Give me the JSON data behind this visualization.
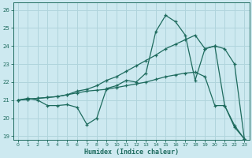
{
  "xlabel": "Humidex (Indice chaleur)",
  "xlim": [
    -0.5,
    23.5
  ],
  "ylim": [
    18.8,
    26.4
  ],
  "yticks": [
    19,
    20,
    21,
    22,
    23,
    24,
    25,
    26
  ],
  "xticks": [
    0,
    1,
    2,
    3,
    4,
    5,
    6,
    7,
    8,
    9,
    10,
    11,
    12,
    13,
    14,
    15,
    16,
    17,
    18,
    19,
    20,
    21,
    22,
    23
  ],
  "bg_color": "#cde9f0",
  "grid_color": "#b0d4dc",
  "line_color": "#1e6b5e",
  "line1_x": [
    0,
    1,
    2,
    3,
    4,
    5,
    6,
    7,
    8,
    9,
    10,
    11,
    12,
    13,
    14,
    15,
    16,
    17,
    18,
    19,
    20,
    21,
    22,
    23
  ],
  "line1_y": [
    21.0,
    21.1,
    21.0,
    20.7,
    20.7,
    20.75,
    20.6,
    19.65,
    20.0,
    21.65,
    21.8,
    22.1,
    22.0,
    22.5,
    24.8,
    25.7,
    25.35,
    24.6,
    22.1,
    23.85,
    24.0,
    20.7,
    19.5,
    18.85
  ],
  "line2_x": [
    0,
    1,
    2,
    3,
    4,
    5,
    6,
    7,
    8,
    9,
    10,
    11,
    12,
    13,
    14,
    15,
    16,
    17,
    18,
    19,
    20,
    21,
    22,
    23
  ],
  "line2_y": [
    21.0,
    21.05,
    21.1,
    21.15,
    21.2,
    21.3,
    21.4,
    21.5,
    21.55,
    21.6,
    21.7,
    21.8,
    21.9,
    22.0,
    22.15,
    22.3,
    22.4,
    22.5,
    22.55,
    22.3,
    20.7,
    20.7,
    19.6,
    18.85
  ],
  "line3_x": [
    0,
    1,
    2,
    3,
    4,
    5,
    6,
    7,
    8,
    9,
    10,
    11,
    12,
    13,
    14,
    15,
    16,
    17,
    18,
    19,
    20,
    21,
    22,
    23
  ],
  "line3_y": [
    21.0,
    21.05,
    21.1,
    21.15,
    21.2,
    21.3,
    21.5,
    21.6,
    21.8,
    22.1,
    22.3,
    22.6,
    22.9,
    23.2,
    23.5,
    23.85,
    24.1,
    24.35,
    24.6,
    23.85,
    24.0,
    23.85,
    23.0,
    18.85
  ]
}
